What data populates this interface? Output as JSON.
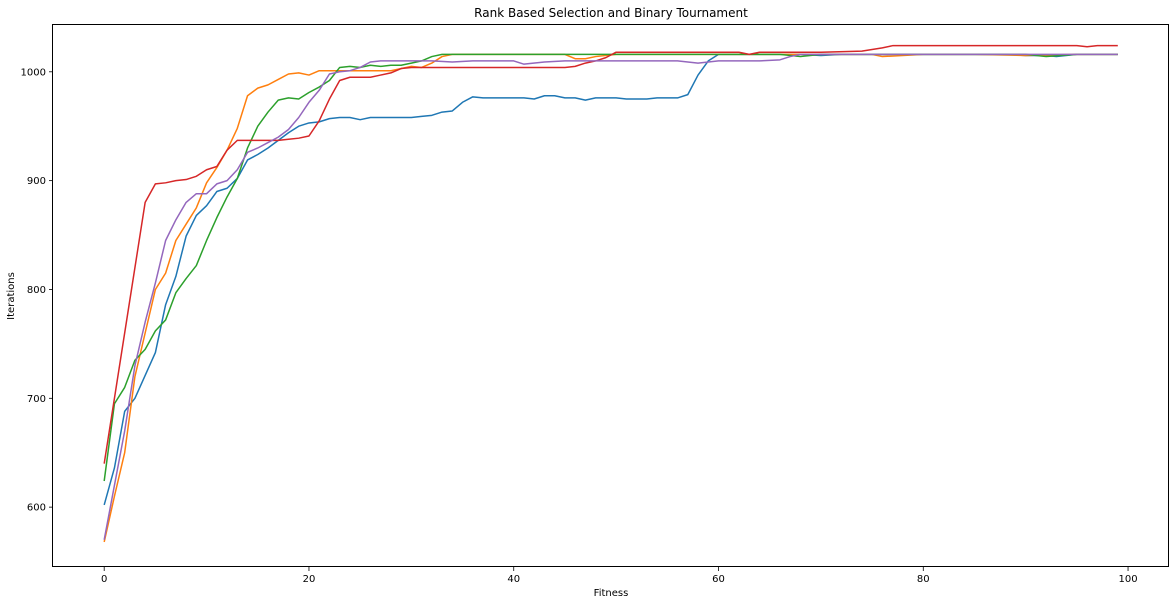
{
  "chart_data": {
    "type": "line",
    "title": "Rank Based Selection and Binary Tournament",
    "xlabel": "Fitness",
    "ylabel": "Iterations",
    "xlim": [
      -5,
      104
    ],
    "ylim": [
      545,
      1043
    ],
    "xticks": [
      0,
      20,
      40,
      60,
      80,
      100
    ],
    "yticks": [
      600,
      700,
      800,
      900,
      1000
    ],
    "grid": false,
    "legend": "none",
    "series": [
      {
        "color": "#1f77b4",
        "x": [
          0,
          1,
          2,
          3,
          4,
          5,
          6,
          7,
          8,
          9,
          10,
          11,
          12,
          13,
          14,
          15,
          16,
          17,
          18,
          19,
          20,
          21,
          22,
          23,
          24,
          25,
          26,
          27,
          28,
          29,
          30,
          31,
          32,
          33,
          34,
          35,
          36,
          37,
          38,
          39,
          40,
          41,
          42,
          43,
          44,
          45,
          46,
          47,
          48,
          49,
          50,
          51,
          52,
          53,
          54,
          55,
          56,
          57,
          58,
          59,
          60,
          62,
          65,
          68,
          70,
          72,
          80,
          85,
          88,
          90,
          92,
          93,
          95,
          99
        ],
        "y": [
          602,
          636,
          688,
          700,
          721,
          742,
          786,
          812,
          849,
          868,
          877,
          890,
          893,
          902,
          919,
          924,
          930,
          937,
          944,
          950,
          953,
          954,
          957,
          958,
          958,
          956,
          958,
          958,
          958,
          958,
          958,
          959,
          960,
          963,
          964,
          972,
          977,
          976,
          976,
          976,
          976,
          976,
          975,
          978,
          978,
          976,
          976,
          974,
          976,
          976,
          976,
          975,
          975,
          975,
          976,
          976,
          976,
          979,
          997,
          1010,
          1016,
          1016,
          1016,
          1016,
          1015,
          1016,
          1016,
          1016,
          1016,
          1015,
          1015,
          1014,
          1016,
          1016
        ]
      },
      {
        "color": "#ff7f0e",
        "x": [
          0,
          1,
          2,
          3,
          4,
          5,
          6,
          7,
          8,
          9,
          10,
          11,
          12,
          13,
          14,
          15,
          16,
          17,
          18,
          19,
          20,
          21,
          22,
          23,
          25,
          28,
          30,
          31,
          32,
          33,
          34,
          36,
          40,
          42,
          45,
          46,
          47,
          48,
          50,
          60,
          70,
          75,
          76,
          80,
          85,
          90,
          95,
          97,
          99
        ],
        "y": [
          568,
          610,
          650,
          720,
          760,
          800,
          815,
          845,
          860,
          875,
          898,
          912,
          928,
          948,
          978,
          985,
          988,
          993,
          998,
          999,
          997,
          1001,
          1001,
          1001,
          1001,
          1001,
          1005,
          1004,
          1008,
          1014,
          1016,
          1016,
          1016,
          1016,
          1016,
          1012,
          1012,
          1014,
          1016,
          1016,
          1016,
          1016,
          1014,
          1016,
          1016,
          1015,
          1016,
          1016,
          1016
        ]
      },
      {
        "color": "#2ca02c",
        "x": [
          0,
          1,
          2,
          3,
          4,
          5,
          6,
          7,
          8,
          9,
          10,
          11,
          12,
          13,
          14,
          15,
          16,
          17,
          18,
          19,
          20,
          21,
          22,
          23,
          24,
          25,
          26,
          27,
          28,
          29,
          30,
          31,
          32,
          33,
          34,
          40,
          45,
          50,
          60,
          66,
          68,
          70,
          75,
          80,
          85,
          90,
          92,
          95,
          99
        ],
        "y": [
          624,
          695,
          710,
          735,
          745,
          762,
          772,
          797,
          810,
          822,
          845,
          866,
          885,
          902,
          930,
          950,
          963,
          974,
          976,
          975,
          981,
          986,
          992,
          1004,
          1005,
          1004,
          1006,
          1005,
          1006,
          1006,
          1008,
          1010,
          1014,
          1016,
          1016,
          1016,
          1016,
          1016,
          1016,
          1016,
          1014,
          1016,
          1016,
          1016,
          1016,
          1016,
          1014,
          1016,
          1016
        ]
      },
      {
        "color": "#d62728",
        "x": [
          0,
          4,
          5,
          6,
          7,
          8,
          9,
          10,
          11,
          12,
          13,
          14,
          15,
          16,
          17,
          18,
          19,
          20,
          21,
          22,
          23,
          24,
          25,
          26,
          27,
          28,
          29,
          30,
          35,
          40,
          45,
          46,
          47,
          48,
          49,
          50,
          55,
          60,
          62,
          63,
          64,
          70,
          74,
          76,
          77,
          78,
          80,
          85,
          90,
          95,
          96,
          97,
          99
        ],
        "y": [
          640,
          880,
          897,
          898,
          900,
          901,
          904,
          910,
          913,
          928,
          937,
          937,
          937,
          937,
          937,
          938,
          939,
          941,
          955,
          975,
          992,
          995,
          995,
          995,
          997,
          999,
          1003,
          1004,
          1004,
          1004,
          1004,
          1005,
          1008,
          1010,
          1013,
          1018,
          1018,
          1018,
          1018,
          1016,
          1018,
          1018,
          1019,
          1022,
          1024,
          1024,
          1024,
          1024,
          1024,
          1024,
          1023,
          1024,
          1024
        ]
      },
      {
        "color": "#9467bd",
        "x": [
          0,
          1,
          2,
          3,
          4,
          5,
          6,
          7,
          8,
          9,
          10,
          11,
          12,
          13,
          14,
          15,
          16,
          17,
          18,
          19,
          20,
          21,
          22,
          23,
          24,
          25,
          26,
          27,
          30,
          32,
          34,
          36,
          40,
          41,
          43,
          45,
          50,
          55,
          56,
          58,
          60,
          64,
          66,
          67,
          68,
          70,
          75,
          80,
          85,
          90,
          95,
          99
        ],
        "y": [
          570,
          620,
          670,
          730,
          770,
          806,
          845,
          864,
          880,
          888,
          888,
          897,
          900,
          910,
          926,
          930,
          935,
          940,
          947,
          958,
          972,
          983,
          998,
          1000,
          1001,
          1004,
          1009,
          1010,
          1010,
          1010,
          1009,
          1010,
          1010,
          1007,
          1009,
          1010,
          1010,
          1010,
          1010,
          1008,
          1010,
          1010,
          1011,
          1014,
          1016,
          1016,
          1016,
          1016,
          1016,
          1016,
          1016,
          1016
        ]
      }
    ]
  }
}
